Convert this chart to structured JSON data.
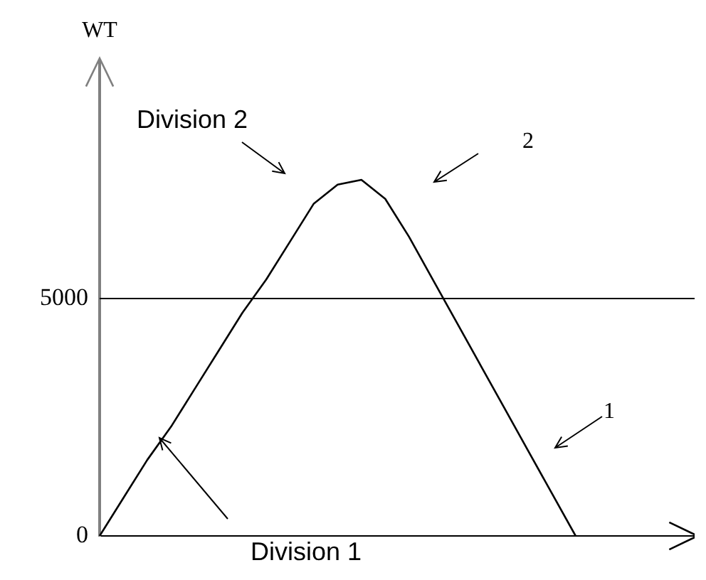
{
  "chart_data": {
    "type": "line",
    "ylabel": "WT",
    "categories": [
      null,
      null,
      null,
      null,
      null,
      null,
      null,
      null,
      null,
      null,
      null,
      null,
      null,
      null,
      null,
      null,
      null,
      null,
      null,
      null,
      null,
      null,
      null,
      null,
      null,
      null
    ],
    "series": [
      {
        "color": "#000000",
        "values": [
          0,
          800,
          1600,
          2300,
          3100,
          3900,
          4700,
          5400,
          6200,
          7000,
          7400,
          7500,
          7100,
          6300,
          5400,
          4500,
          3600,
          2700,
          1800,
          900,
          0,
          null,
          null,
          null,
          null,
          null
        ]
      }
    ],
    "ylim": [
      0,
      10000
    ],
    "yticks": [
      0,
      5000
    ],
    "tick_labels": "y",
    "grid": false,
    "legend": false,
    "marker": "none",
    "line_style": "solid",
    "ref_lines": [
      {
        "axis": "y",
        "value": 5000,
        "color": "#000000"
      }
    ],
    "annotations": [
      "Division 2",
      "2",
      "1",
      "Division 1"
    ]
  }
}
